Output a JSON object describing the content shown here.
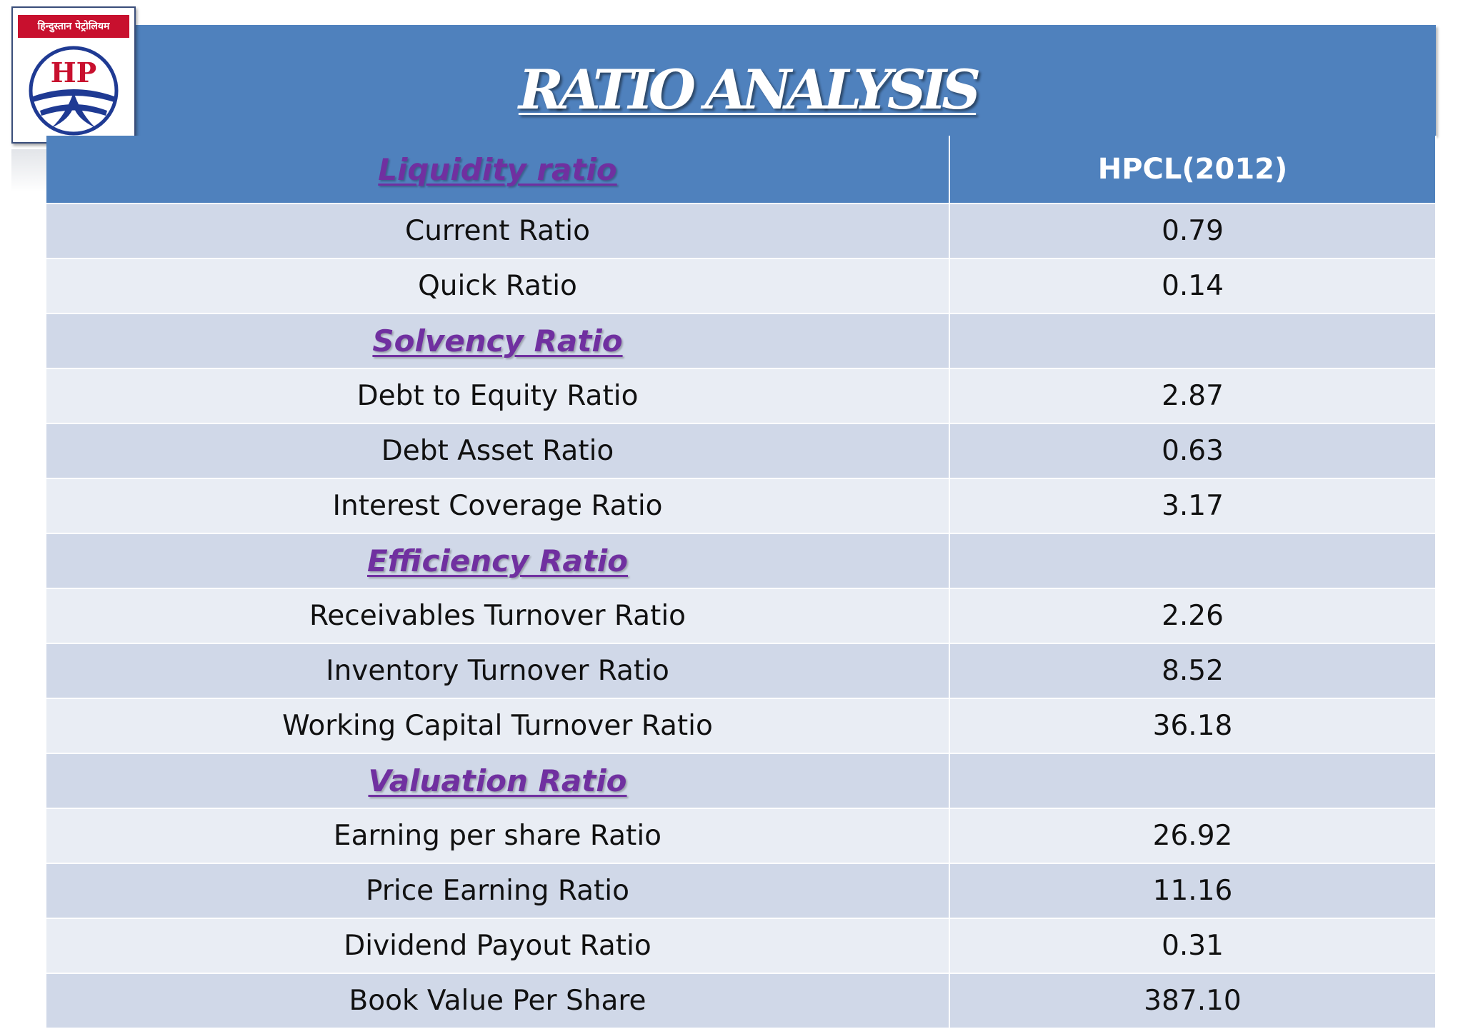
{
  "logo": {
    "banner_text": "हिन्दुस्तान पेट्रोलियम",
    "emblem_text": "HP",
    "brand_red": "#c8102e",
    "brand_blue": "#1f3a93"
  },
  "slide": {
    "title": "RATIO ANALYSIS"
  },
  "table": {
    "header": {
      "metric_label": "Liquidity ratio",
      "value_label": "HPCL(2012)"
    },
    "rows": [
      {
        "label": "Current Ratio",
        "value": "0.79"
      },
      {
        "label": "Quick Ratio",
        "value": "0.14"
      },
      {
        "label": "Solvency Ratio",
        "value": ""
      },
      {
        "label": "Debt to Equity Ratio",
        "value": "2.87"
      },
      {
        "label": "Debt Asset Ratio",
        "value": "0.63"
      },
      {
        "label": "Interest Coverage Ratio",
        "value": "3.17"
      },
      {
        "label": "Efficiency Ratio",
        "value": ""
      },
      {
        "label": "Receivables Turnover Ratio",
        "value": "2.26"
      },
      {
        "label": "Inventory Turnover Ratio",
        "value": "8.52"
      },
      {
        "label": "Working Capital Turnover Ratio",
        "value": "36.18"
      },
      {
        "label": "Valuation Ratio",
        "value": ""
      },
      {
        "label": "Earning per share Ratio",
        "value": "26.92"
      },
      {
        "label": "Price Earning Ratio",
        "value": "11.16"
      },
      {
        "label": "Dividend Payout Ratio",
        "value": "0.31"
      },
      {
        "label": "Book Value Per Share",
        "value": "387.10"
      }
    ]
  },
  "colors": {
    "header_blue": "#4f81bd",
    "row_dark": "#d0d8e8",
    "row_light": "#e9edf4",
    "section_purple": "#7030a0"
  }
}
